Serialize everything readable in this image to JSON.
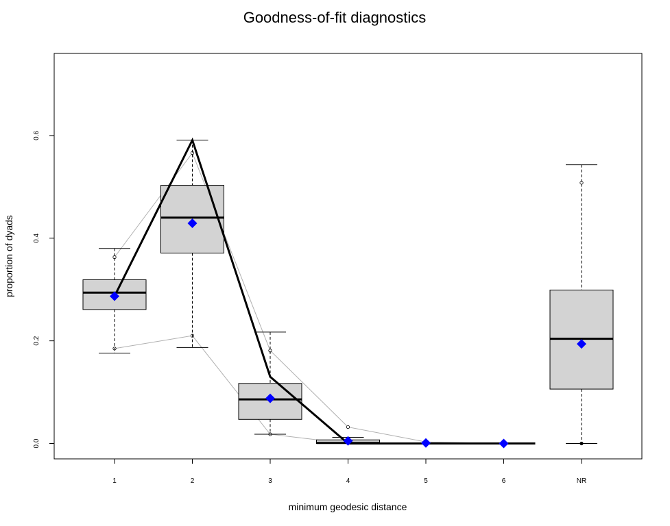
{
  "chart_data": {
    "type": "boxplot",
    "title": "Goodness-of-fit diagnostics",
    "xlabel": "minimum geodesic distance",
    "ylabel": "proportion of dyads",
    "categories": [
      "1",
      "2",
      "3",
      "4",
      "5",
      "6",
      "NR"
    ],
    "ylim": [
      -0.03,
      0.76
    ],
    "yticks": [
      0.0,
      0.2,
      0.4,
      0.6
    ],
    "ytick_labels": [
      "0.0",
      "0.2",
      "0.4",
      "0.6"
    ],
    "grid": false,
    "boxes": [
      {
        "category": "1",
        "whisker_low": 0.176,
        "q1": 0.261,
        "median": 0.294,
        "q3": 0.319,
        "whisker_high": 0.38
      },
      {
        "category": "2",
        "whisker_low": 0.187,
        "q1": 0.371,
        "median": 0.44,
        "q3": 0.503,
        "whisker_high": 0.591
      },
      {
        "category": "3",
        "whisker_low": 0.018,
        "q1": 0.047,
        "median": 0.086,
        "q3": 0.117,
        "whisker_high": 0.217
      },
      {
        "category": "4",
        "whisker_low": 0.0,
        "q1": 0.0,
        "median": 0.001,
        "q3": 0.007,
        "whisker_high": 0.012
      },
      {
        "category": "5",
        "whisker_low": 0.0,
        "q1": 0.0,
        "median": 0.0,
        "q3": 0.0,
        "whisker_high": 0.0
      },
      {
        "category": "6",
        "whisker_low": 0.0,
        "q1": 0.0,
        "median": 0.0,
        "q3": 0.0,
        "whisker_high": 0.0
      },
      {
        "category": "NR",
        "whisker_low": 0.0,
        "q1": 0.106,
        "median": 0.204,
        "q3": 0.299,
        "whisker_high": 0.543
      }
    ],
    "series": [
      {
        "role": "observed",
        "values": [
          0.287,
          0.591,
          0.13,
          0.0,
          0.0,
          0.0,
          null
        ]
      },
      {
        "role": "simulated-mean",
        "values": [
          0.287,
          0.429,
          0.088,
          0.005,
          0.001,
          0.0,
          0.194
        ]
      },
      {
        "role": "upper-quantile",
        "values": [
          0.363,
          0.566,
          0.181,
          0.032,
          0.003,
          0.0,
          0.508
        ]
      },
      {
        "role": "lower-quantile",
        "values": [
          0.185,
          0.21,
          0.018,
          0.0,
          0.0,
          0.0,
          0.0
        ]
      }
    ],
    "colors": {
      "box_fill": "#d3d3d3",
      "mean_marker": "#0000ff",
      "observed_line": "#000000",
      "quantile_line": "#b0b0b0"
    }
  }
}
